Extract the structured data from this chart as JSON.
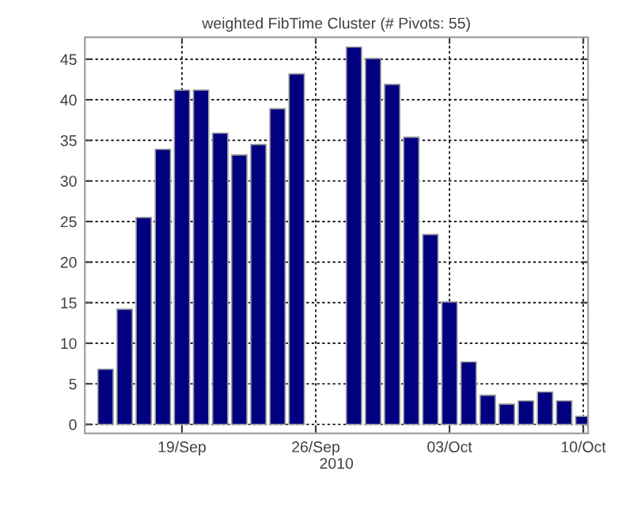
{
  "chart_data": {
    "type": "bar",
    "title": "weighted FibTime Cluster (# Pivots: 55)",
    "xlabel": "2010",
    "x": [
      "2010-09-15",
      "2010-09-16",
      "2010-09-17",
      "2010-09-18",
      "2010-09-19",
      "2010-09-20",
      "2010-09-21",
      "2010-09-22",
      "2010-09-23",
      "2010-09-24",
      "2010-09-25",
      "2010-09-26",
      "2010-09-27",
      "2010-09-28",
      "2010-09-29",
      "2010-09-30",
      "2010-10-01",
      "2010-10-02",
      "2010-10-03",
      "2010-10-04",
      "2010-10-05",
      "2010-10-06",
      "2010-10-07",
      "2010-10-08",
      "2010-10-09",
      "2010-10-10"
    ],
    "series": [
      {
        "color": "#000080",
        "values": [
          6.8,
          14.2,
          25.5,
          33.9,
          41.2,
          41.2,
          35.9,
          33.2,
          34.5,
          38.9,
          43.2,
          null,
          null,
          46.5,
          45.1,
          41.9,
          35.4,
          23.4,
          15.1,
          7.7,
          3.6,
          2.5,
          2.9,
          4.0,
          2.9,
          1.0
        ]
      }
    ],
    "xlim": [
      "2010-09-13T22:00",
      "2010-10-10T06:00"
    ],
    "xticks": [
      {
        "value": "2010-09-19",
        "label": "19/Sep"
      },
      {
        "value": "2010-09-26",
        "label": "26/Sep"
      },
      {
        "value": "2010-10-03",
        "label": "03/Oct"
      },
      {
        "value": "2010-10-10",
        "label": "10/Oct"
      }
    ],
    "ylim": [
      -1.1,
      47.7
    ],
    "yticks": [
      0,
      5,
      10,
      15,
      20,
      25,
      30,
      35,
      40,
      45
    ],
    "grid": true,
    "legend": false
  }
}
